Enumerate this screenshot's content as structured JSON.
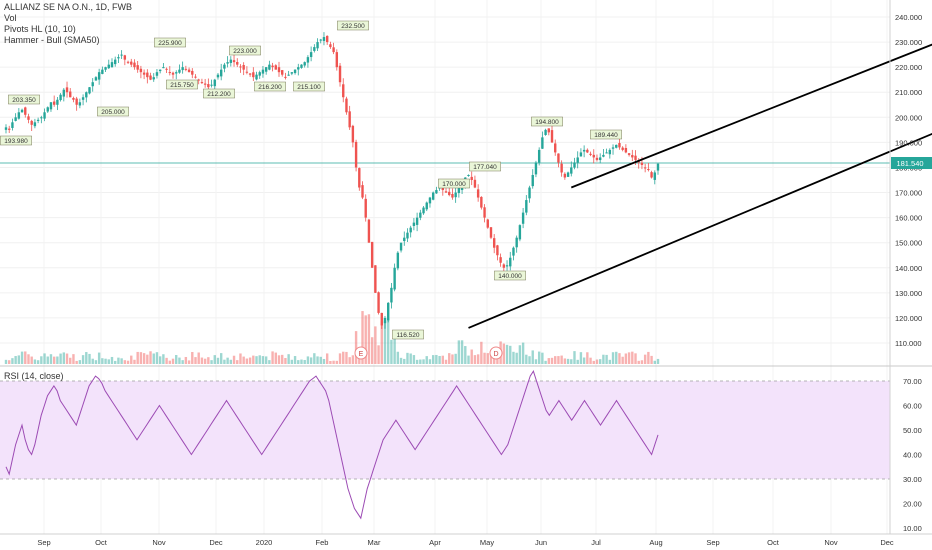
{
  "legend": {
    "symbol": "ALLIANZ SE NA O.N., 1D, FWB",
    "vol": "Vol",
    "pivots": "Pivots HL (10, 10)",
    "hammer": "Hammer - Bull (SMA50)",
    "rsi": "RSI (14, close)"
  },
  "colors": {
    "up": "#26a69a",
    "down": "#ef5350",
    "channel": "#000000",
    "rsi_line": "#9c4bb4",
    "rsi_band": "#f3e3fb",
    "price_line": "#26a69a",
    "pivot_bg": "#eaf6d8"
  },
  "chart_data": [
    {
      "type": "candlestick",
      "title": "ALLIANZ SE NA O.N., 1D, FWB",
      "y_ticks": [
        "240.000",
        "230.000",
        "220.000",
        "210.000",
        "200.000",
        "190.000",
        "180.000",
        "170.000",
        "160.000",
        "150.000",
        "140.000",
        "130.000",
        "120.000",
        "110.000"
      ],
      "ylim": [
        104,
        242
      ],
      "x_tick_labels": [
        "Sep",
        "Oct",
        "Nov",
        "Dec",
        "2020",
        "Feb",
        "Mar",
        "Apr",
        "May",
        "Jun",
        "Jul",
        "Aug",
        "Sep",
        "Oct",
        "Nov",
        "Dec"
      ],
      "last_price": "181.540",
      "pivot_labels": [
        "193.980",
        "203.350",
        "205.000",
        "225.900",
        "215.750",
        "223.000",
        "212.200",
        "216.200",
        "215.100",
        "232.500",
        "116.520",
        "170.000",
        "177.040",
        "140.000",
        "194.800",
        "189.440"
      ],
      "event_markers": [
        "E",
        "D"
      ],
      "close_series": [
        196,
        195,
        198,
        200,
        202,
        203,
        201,
        199,
        197,
        198,
        199,
        200,
        202,
        204,
        206,
        205,
        207,
        209,
        211,
        210,
        208,
        207,
        205,
        206,
        208,
        210,
        212,
        214,
        216,
        218,
        219,
        220,
        221,
        222,
        223,
        224,
        225,
        223,
        222,
        221,
        220,
        219,
        218,
        217,
        216,
        215,
        216,
        218,
        219,
        220,
        219,
        218,
        217,
        218,
        219,
        220,
        219,
        218,
        217,
        216,
        215,
        214,
        213,
        212,
        213,
        215,
        217,
        219,
        221,
        222,
        223,
        222,
        221,
        220,
        219,
        218,
        217,
        216,
        217,
        218,
        219,
        220,
        221,
        220,
        219,
        218,
        217,
        216,
        217,
        218,
        219,
        220,
        221,
        222,
        224,
        226,
        228,
        230,
        231,
        232,
        230,
        228,
        226,
        220,
        214,
        208,
        202,
        196,
        190,
        180,
        172,
        168,
        160,
        150,
        140,
        130,
        122,
        117,
        120,
        126,
        132,
        140,
        146,
        150,
        152,
        154,
        156,
        158,
        160,
        162,
        164,
        166,
        168,
        170,
        171,
        172,
        171,
        170,
        169,
        168,
        170,
        172,
        174,
        176,
        177,
        175,
        172,
        168,
        164,
        160,
        156,
        152,
        148,
        145,
        142,
        140,
        141,
        144,
        148,
        152,
        157,
        162,
        167,
        172,
        177,
        182,
        187,
        192,
        195,
        194,
        190,
        186,
        182,
        178,
        176,
        178,
        180,
        182,
        184,
        186,
        187,
        186,
        185,
        184,
        183,
        184,
        185,
        186,
        187,
        188,
        189,
        188,
        187,
        186,
        185,
        184,
        183,
        182,
        181,
        180,
        179,
        176,
        178,
        181.5
      ],
      "channel": {
        "upper": [
          [
            176,
            172
          ],
          [
            310,
            240
          ]
        ],
        "lower": [
          [
            144,
            116
          ],
          [
            310,
            205
          ]
        ]
      }
    },
    {
      "type": "line",
      "name": "RSI (14, close)",
      "y_ticks": [
        "70.00",
        "60.00",
        "50.00",
        "40.00",
        "30.00",
        "20.00",
        "10.00"
      ],
      "ylim": [
        8,
        74
      ],
      "band": [
        30,
        70
      ],
      "values": [
        35,
        32,
        38,
        44,
        48,
        52,
        46,
        42,
        40,
        44,
        50,
        56,
        60,
        64,
        66,
        68,
        66,
        62,
        60,
        58,
        56,
        54,
        52,
        56,
        60,
        64,
        68,
        70,
        72,
        71,
        69,
        66,
        64,
        62,
        60,
        58,
        56,
        54,
        52,
        50,
        48,
        46,
        48,
        50,
        52,
        54,
        56,
        58,
        60,
        58,
        56,
        54,
        52,
        50,
        48,
        46,
        44,
        42,
        40,
        42,
        44,
        46,
        48,
        50,
        52,
        54,
        56,
        58,
        60,
        62,
        60,
        58,
        56,
        54,
        52,
        50,
        48,
        46,
        44,
        42,
        40,
        42,
        44,
        46,
        48,
        50,
        52,
        54,
        56,
        58,
        60,
        62,
        64,
        66,
        68,
        70,
        71,
        72,
        70,
        68,
        66,
        62,
        56,
        50,
        44,
        38,
        32,
        26,
        22,
        18,
        16,
        14,
        20,
        26,
        30,
        34,
        38,
        42,
        46,
        48,
        50,
        52,
        54,
        52,
        50,
        48,
        46,
        44,
        42,
        44,
        46,
        48,
        50,
        52,
        54,
        56,
        58,
        60,
        62,
        64,
        66,
        68,
        66,
        64,
        62,
        60,
        58,
        56,
        54,
        52,
        50,
        48,
        46,
        44,
        42,
        40,
        42,
        44,
        48,
        52,
        56,
        60,
        64,
        68,
        72,
        74,
        70,
        66,
        62,
        58,
        56,
        58,
        60,
        62,
        60,
        58,
        56,
        54,
        56,
        58,
        60,
        62,
        60,
        58,
        56,
        54,
        52,
        54,
        56,
        58,
        60,
        62,
        60,
        58,
        56,
        54,
        52,
        50,
        48,
        46,
        44,
        42,
        40,
        44,
        48
      ]
    }
  ]
}
